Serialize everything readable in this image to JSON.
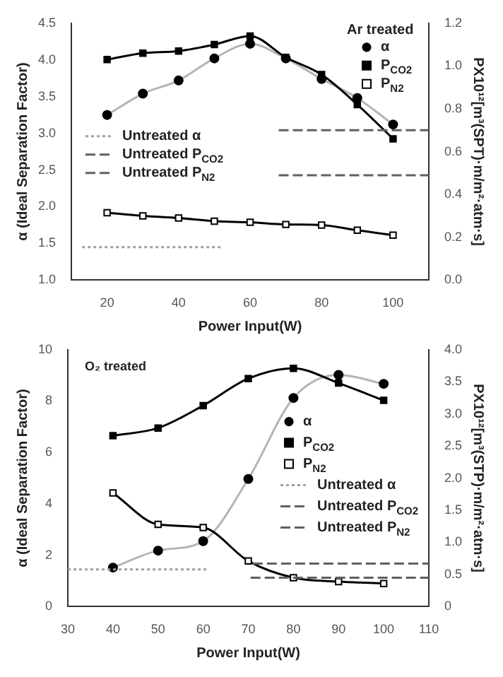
{
  "chart_data": [
    {
      "type": "line",
      "legend_title": "Ar treated",
      "xlabel": "Power Input(W)",
      "ylabel": "α (Ideal Separation Factor)",
      "y2label": "PX10¹²[m³(SPT)·m/m²·atm·s]",
      "x": [
        20,
        30,
        40,
        50,
        60,
        70,
        80,
        90,
        100
      ],
      "xlim": [
        10,
        110
      ],
      "xticks": [
        20,
        40,
        60,
        80,
        100
      ],
      "ylim": [
        1,
        4.5
      ],
      "yticks": [
        {
          "value": 1,
          "label": "1.0"
        },
        1.5,
        {
          "value": 2,
          "label": "2.0"
        },
        2.5,
        {
          "value": 3,
          "label": "3.0"
        },
        3.5,
        {
          "value": 4,
          "label": "4.0"
        },
        4.5
      ],
      "y2lim": [
        0,
        1.2
      ],
      "y2ticks": [
        {
          "value": 0,
          "label": "0.0"
        },
        0.2,
        0.4,
        0.6,
        0.8,
        {
          "value": 1,
          "label": "1.0"
        },
        1.2
      ],
      "legend": "top right",
      "grid": false,
      "series": [
        {
          "type": "line",
          "color": "#b4b4b4",
          "marker": "none",
          "values": [
            3.25,
            3.54,
            3.72,
            4.02,
            4.22,
            4.02,
            3.74,
            3.48,
            3.12
          ]
        },
        {
          "name": "α",
          "type": "scatter",
          "color": "#000000",
          "marker": "circle",
          "values": [
            3.25,
            3.54,
            3.72,
            4.02,
            4.22,
            4.02,
            3.74,
            3.48,
            3.12
          ]
        },
        {
          "name": "P$_{CO2}$",
          "type": "line",
          "axis": "y2",
          "color": "#000000",
          "marker": "square",
          "values": [
            1.03,
            1.06,
            1.07,
            1.1,
            1.14,
            1.04,
            0.96,
            0.82,
            0.66
          ]
        },
        {
          "type": "line",
          "axis": "y2",
          "color": "#000000",
          "marker": "none",
          "values": [
            0.315,
            0.3,
            0.29,
            0.275,
            0.27,
            0.26,
            0.257,
            0.233,
            0.21
          ]
        },
        {
          "name": "P$_{N2}$",
          "type": "scatter",
          "axis": "y2",
          "color": "#ffffff",
          "marker": "square",
          "values": [
            0.315,
            0.3,
            0.29,
            0.275,
            0.27,
            0.26,
            0.257,
            0.233,
            0.21
          ]
        },
        {
          "name": "Untreated α",
          "type": "line",
          "color": "#a0a0a0",
          "marker": "none",
          "line_style": "dotted",
          "x": [
            13,
            52
          ],
          "values": [
            1.45,
            1.45
          ]
        },
        {
          "name": "Untreated P$_{CO2}$",
          "type": "line",
          "axis": "y2",
          "color": "#606060",
          "marker": "none",
          "line_style": "dashed",
          "x": [
            68,
            110
          ],
          "values": [
            0.7,
            0.7
          ]
        },
        {
          "name": "Untreated P$_{N2}$",
          "type": "line",
          "axis": "y2",
          "color": "#606060",
          "marker": "none",
          "line_style": "dashed",
          "x": [
            68,
            110
          ],
          "values": [
            0.49,
            0.49
          ]
        }
      ]
    },
    {
      "type": "line",
      "annotations": [
        "O₂ treated"
      ],
      "xlabel": "Power Input(W)",
      "ylabel": "α (Ideal Separation Factor)",
      "y2label": "PX10¹²[m³(STP)·m/m²·atm·s]",
      "x": [
        40,
        50,
        60,
        70,
        80,
        90,
        100
      ],
      "xlim": [
        30,
        110
      ],
      "xticks": [
        30,
        40,
        50,
        60,
        70,
        80,
        90,
        100,
        110
      ],
      "ylim": [
        0,
        10
      ],
      "yticks": [
        0,
        2,
        4,
        6,
        8,
        10
      ],
      "y2lim": [
        0,
        4
      ],
      "y2ticks": [
        0,
        0.5,
        {
          "value": 1,
          "label": "1.0"
        },
        1.5,
        {
          "value": 2,
          "label": "2.0"
        },
        2.5,
        {
          "value": 3,
          "label": "3.0"
        },
        3.5,
        {
          "value": 4,
          "label": "4.0"
        }
      ],
      "legend": "right",
      "grid": false,
      "series": [
        {
          "type": "line",
          "color": "#b4b4b4",
          "marker": "none",
          "values": [
            1.52,
            2.18,
            2.55,
            4.97,
            8.12,
            9.02,
            8.67
          ]
        },
        {
          "name": "α",
          "type": "scatter",
          "color": "#000000",
          "marker": "circle",
          "values": [
            1.52,
            2.18,
            2.55,
            4.97,
            8.12,
            9.02,
            8.67
          ]
        },
        {
          "name": "P$_{CO2}$",
          "type": "line",
          "axis": "y2",
          "color": "#000000",
          "marker": "square",
          "values": [
            2.66,
            2.78,
            3.13,
            3.55,
            3.71,
            3.48,
            3.21
          ]
        },
        {
          "type": "line",
          "axis": "y2",
          "color": "#000000",
          "marker": "none",
          "values": [
            1.77,
            1.28,
            1.23,
            0.71,
            0.45,
            0.39,
            0.36
          ]
        },
        {
          "name": "P$_{N2}$",
          "type": "scatter",
          "axis": "y2",
          "color": "#ffffff",
          "marker": "square",
          "values": [
            1.77,
            1.28,
            1.23,
            0.71,
            0.45,
            0.39,
            0.36
          ]
        },
        {
          "name": "Untreated α",
          "type": "line",
          "color": "#a0a0a0",
          "marker": "none",
          "line_style": "dotted",
          "x": [
            30,
            61
          ],
          "values": [
            1.45,
            1.45
          ]
        },
        {
          "name": "Untreated P$_{CO2}$",
          "type": "line",
          "axis": "y2",
          "color": "#606060",
          "marker": "none",
          "line_style": "dashed",
          "x": [
            71,
            110
          ],
          "values": [
            0.67,
            0.67
          ]
        },
        {
          "name": "Untreated P$_{N2}$",
          "type": "line",
          "axis": "y2",
          "color": "#606060",
          "marker": "none",
          "line_style": "dashed",
          "x": [
            70.5,
            110
          ],
          "values": [
            0.45,
            0.45
          ]
        }
      ]
    }
  ]
}
